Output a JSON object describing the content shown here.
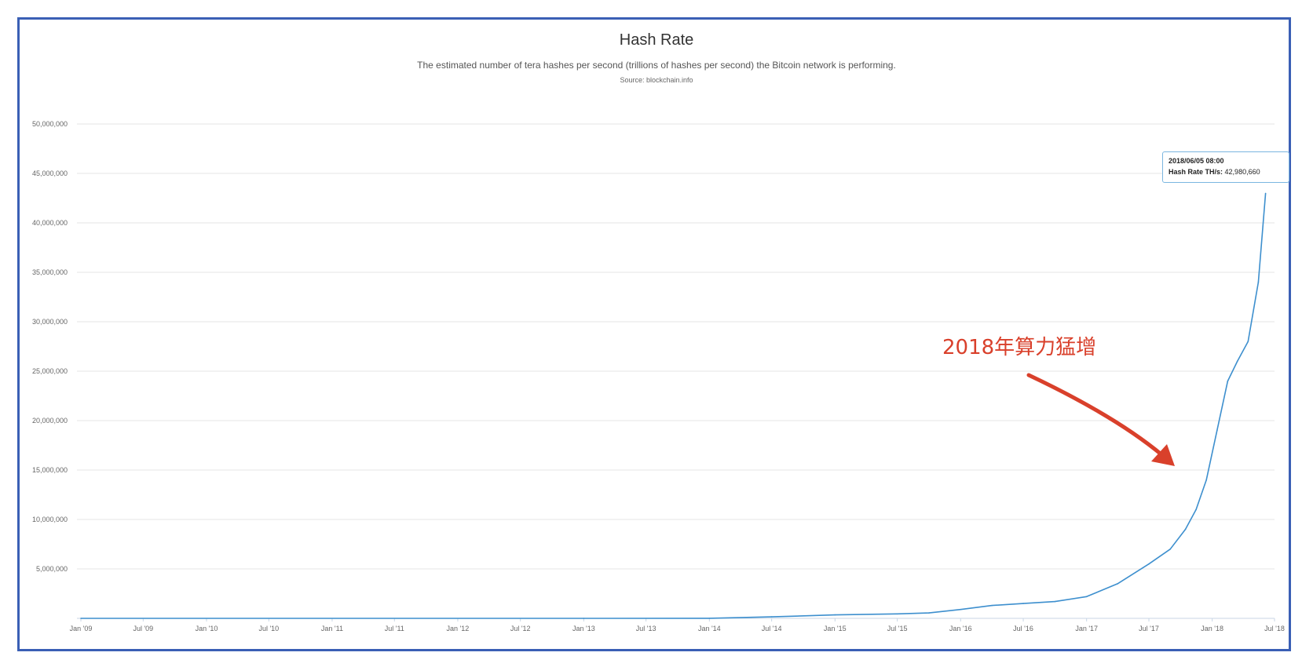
{
  "chart_data": {
    "type": "line",
    "title": "Hash Rate",
    "subtitle": "The estimated number of tera hashes per second (trillions of hashes per second) the Bitcoin network is performing.",
    "source": "Source: blockchain.info",
    "xlabel": "",
    "ylabel": "",
    "xlim": [
      "2009-01-01",
      "2018-07-01"
    ],
    "ylim": [
      0,
      50000000
    ],
    "grid": true,
    "y_ticks": [
      "5,000,000",
      "10,000,000",
      "15,000,000",
      "20,000,000",
      "25,000,000",
      "30,000,000",
      "35,000,000",
      "40,000,000",
      "45,000,000",
      "50,000,000"
    ],
    "x_ticks": [
      "Jan '09",
      "Jul '09",
      "Jan '10",
      "Jul '10",
      "Jan '11",
      "Jul '11",
      "Jan '12",
      "Jul '12",
      "Jan '13",
      "Jul '13",
      "Jan '14",
      "Jul '14",
      "Jan '15",
      "Jul '15",
      "Jan '16",
      "Jul '16",
      "Jan '17",
      "Jul '17",
      "Jan '18",
      "Jul '18"
    ],
    "line_color": "#3d8fce",
    "series": [
      {
        "x": [
          "2009-01-01",
          "2013-01-01",
          "2014-01-01",
          "2014-07-01",
          "2015-01-01",
          "2015-07-01",
          "2015-10-01",
          "2016-01-01",
          "2016-04-01",
          "2016-07-01",
          "2016-10-01",
          "2017-01-01",
          "2017-04-01",
          "2017-07-01",
          "2017-09-01",
          "2017-10-15",
          "2017-11-15",
          "2017-12-15",
          "2018-01-15",
          "2018-02-15",
          "2018-03-15",
          "2018-04-15",
          "2018-05-15",
          "2018-06-05"
        ],
        "y": [
          0,
          25,
          10000,
          150000,
          350000,
          450000,
          550000,
          900000,
          1300000,
          1500000,
          1700000,
          2200000,
          3500000,
          5500000,
          7000000,
          9000000,
          11000000,
          14000000,
          19000000,
          24000000,
          26000000,
          28000000,
          34000000,
          42980660
        ]
      }
    ],
    "tooltip": {
      "date": "2018/06/05 08:00",
      "label": "Hash Rate TH/s:",
      "value": "42,980,660"
    },
    "annotation": {
      "text": "2018年算力猛增",
      "color": "#d9402b"
    }
  }
}
